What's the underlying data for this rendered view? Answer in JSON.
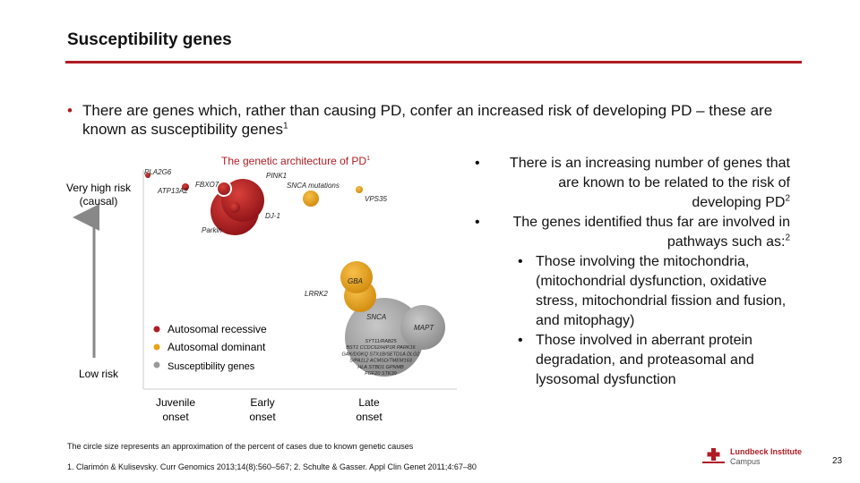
{
  "slide": {
    "title": "Susceptibility genes",
    "page_number": "23"
  },
  "intro": {
    "bullet": "•",
    "text": "There are genes which, rather than causing PD, confer an increased risk of developing PD – these are known as susceptibility genes",
    "sup": "1"
  },
  "right": {
    "bullet1": "There is an increasing number of genes that are known to be related to the risk of developing PD",
    "bullet1_sup": "2",
    "bullet2": "The genes identified thus far are involved in pathways such as:",
    "bullet2_sup": "2",
    "sub1": "Those involving the mitochondria, (mitochondrial dysfunction, oxidative stress, mitochondrial fission and fusion, and mitophagy)",
    "sub2": "Those involved in aberrant protein degradation, and proteasomal and lysosomal dysfunction",
    "bullet_char": "•"
  },
  "chart_data": {
    "type": "scatter",
    "title": "The genetic architecture of PD",
    "title_sup": "1",
    "y_top_label": [
      "Very high risk",
      "(causal)"
    ],
    "y_bottom_label": "Low risk",
    "x_labels": [
      {
        "id": "juvenile",
        "lines": [
          "Juvenile",
          "onset"
        ]
      },
      {
        "id": "early",
        "lines": [
          "Early",
          "onset"
        ]
      },
      {
        "id": "late",
        "lines": [
          "Late",
          "onset"
        ]
      }
    ],
    "legend": [
      {
        "label": "Autosomal recessive",
        "color": "#b01c24"
      },
      {
        "label": "Autosomal dominant",
        "color": "#e8a317"
      },
      {
        "label": "Susceptibility genes",
        "color": "#9a9a9a"
      }
    ],
    "genes": [
      {
        "label": "PLA2G6",
        "class": "recessive"
      },
      {
        "label": "ATP13A2",
        "class": "recessive"
      },
      {
        "label": "FBXO7",
        "class": "recessive"
      },
      {
        "label": "PINK1",
        "class": "recessive"
      },
      {
        "label": "DJ-1",
        "class": "recessive"
      },
      {
        "label": "Parkin",
        "class": "recessive"
      },
      {
        "label": "SNCA mutations",
        "class": "dominant"
      },
      {
        "label": "VPS35",
        "class": "dominant"
      },
      {
        "label": "LRRK2",
        "class": "dominant"
      },
      {
        "label": "GBA",
        "class": "dominant"
      },
      {
        "label": "SNCA",
        "class": "susceptibility"
      },
      {
        "label": "MAPT",
        "class": "susceptibility"
      }
    ],
    "susceptibility_list": [
      "SYT11/RAB25",
      "BST1 CCDC62/HIP1R PARK16",
      "GAK/DGKQ STX1B/SETD1A DLG2",
      "SIPA1L2 ACMSD/TMEM163",
      "HLA STBD1 GPNMB",
      "FGF20 STK39"
    ],
    "colors": {
      "recessive": "#b01c24",
      "dominant": "#e8a317",
      "susceptibility": "#9a9a9a"
    }
  },
  "footnote": "The circle size represents an approximation of the percent of cases due to known genetic causes",
  "references": "1. Clarimón & Kulisevsky. Curr Genomics 2013;14(8):560–567; 2. Schulte & Gasser. Appl Clin Genet 2011;4:67–80",
  "logo": {
    "name": "Lundbeck Institute",
    "sub": "Campus"
  }
}
